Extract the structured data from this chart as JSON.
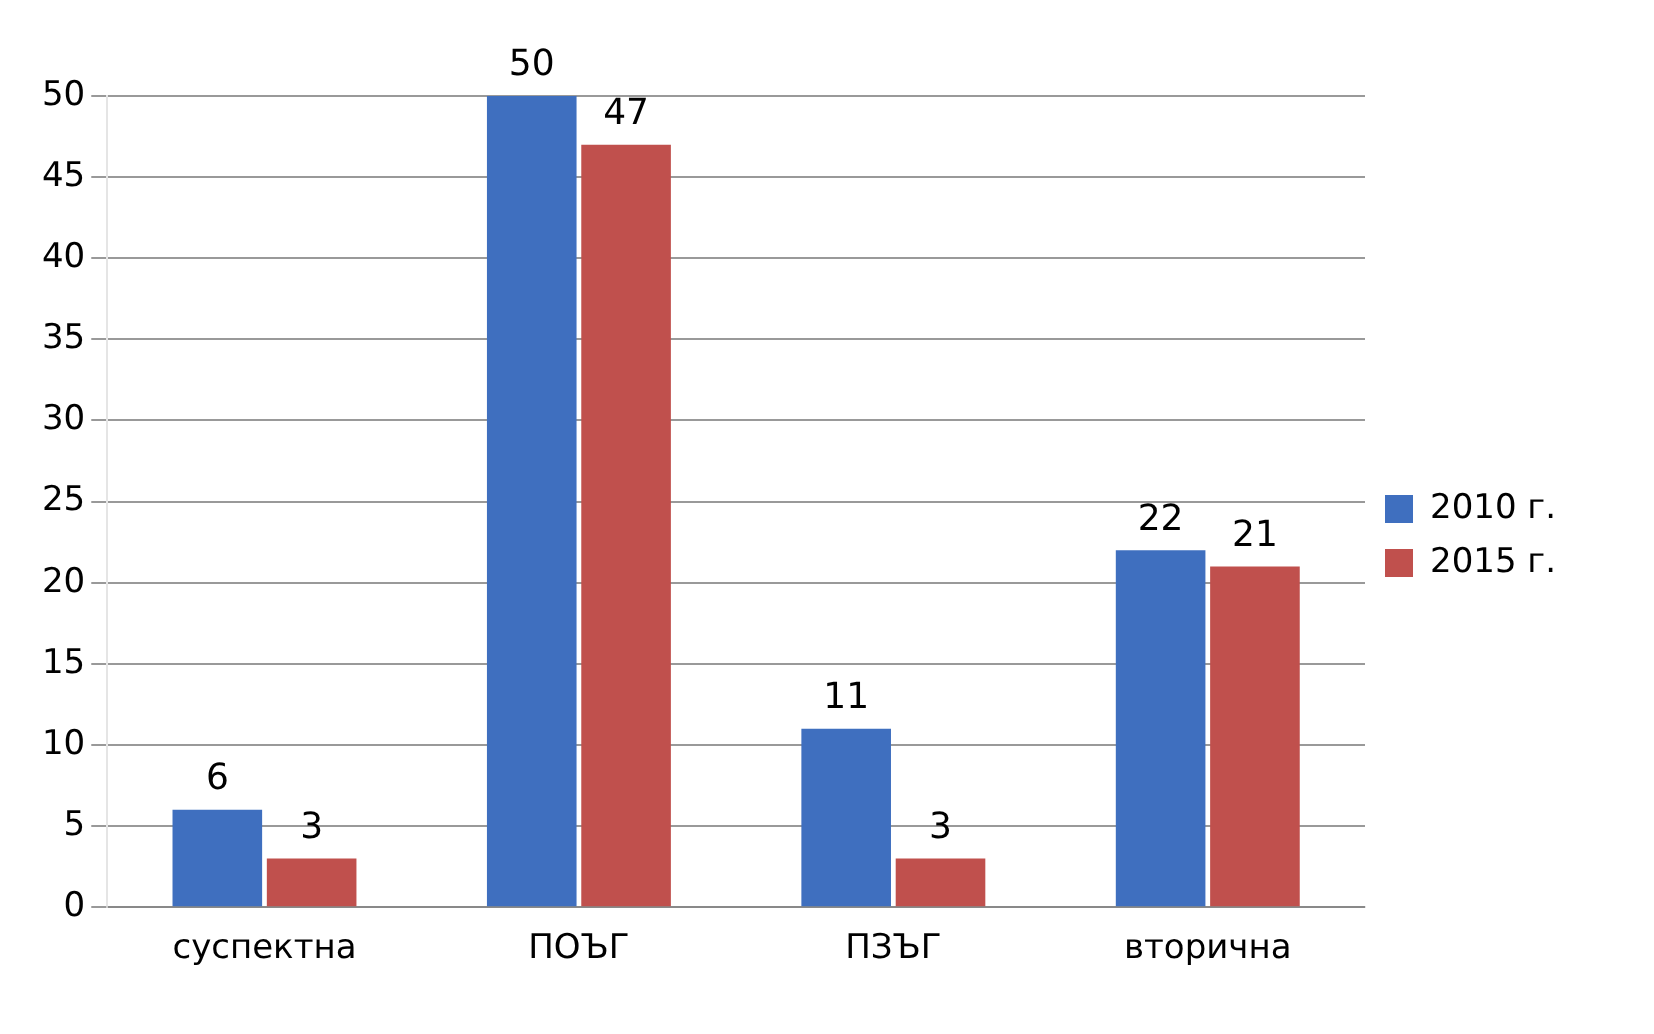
{
  "chart_data": {
    "type": "bar",
    "categories": [
      "суспектна",
      "ПОЪГ",
      "ПЗЪГ",
      "вторична"
    ],
    "series": [
      {
        "name": "2010 г.",
        "color": "#3f6fbf",
        "values": [
          6,
          50,
          11,
          22
        ]
      },
      {
        "name": "2015 г.",
        "color": "#c0504d",
        "values": [
          3,
          47,
          3,
          21
        ]
      }
    ],
    "ylim": [
      0,
      50
    ],
    "yticks": [
      0,
      5,
      10,
      15,
      20,
      25,
      30,
      35,
      40,
      45,
      50
    ],
    "grid": "y",
    "legend": "right",
    "data_labels": true
  }
}
